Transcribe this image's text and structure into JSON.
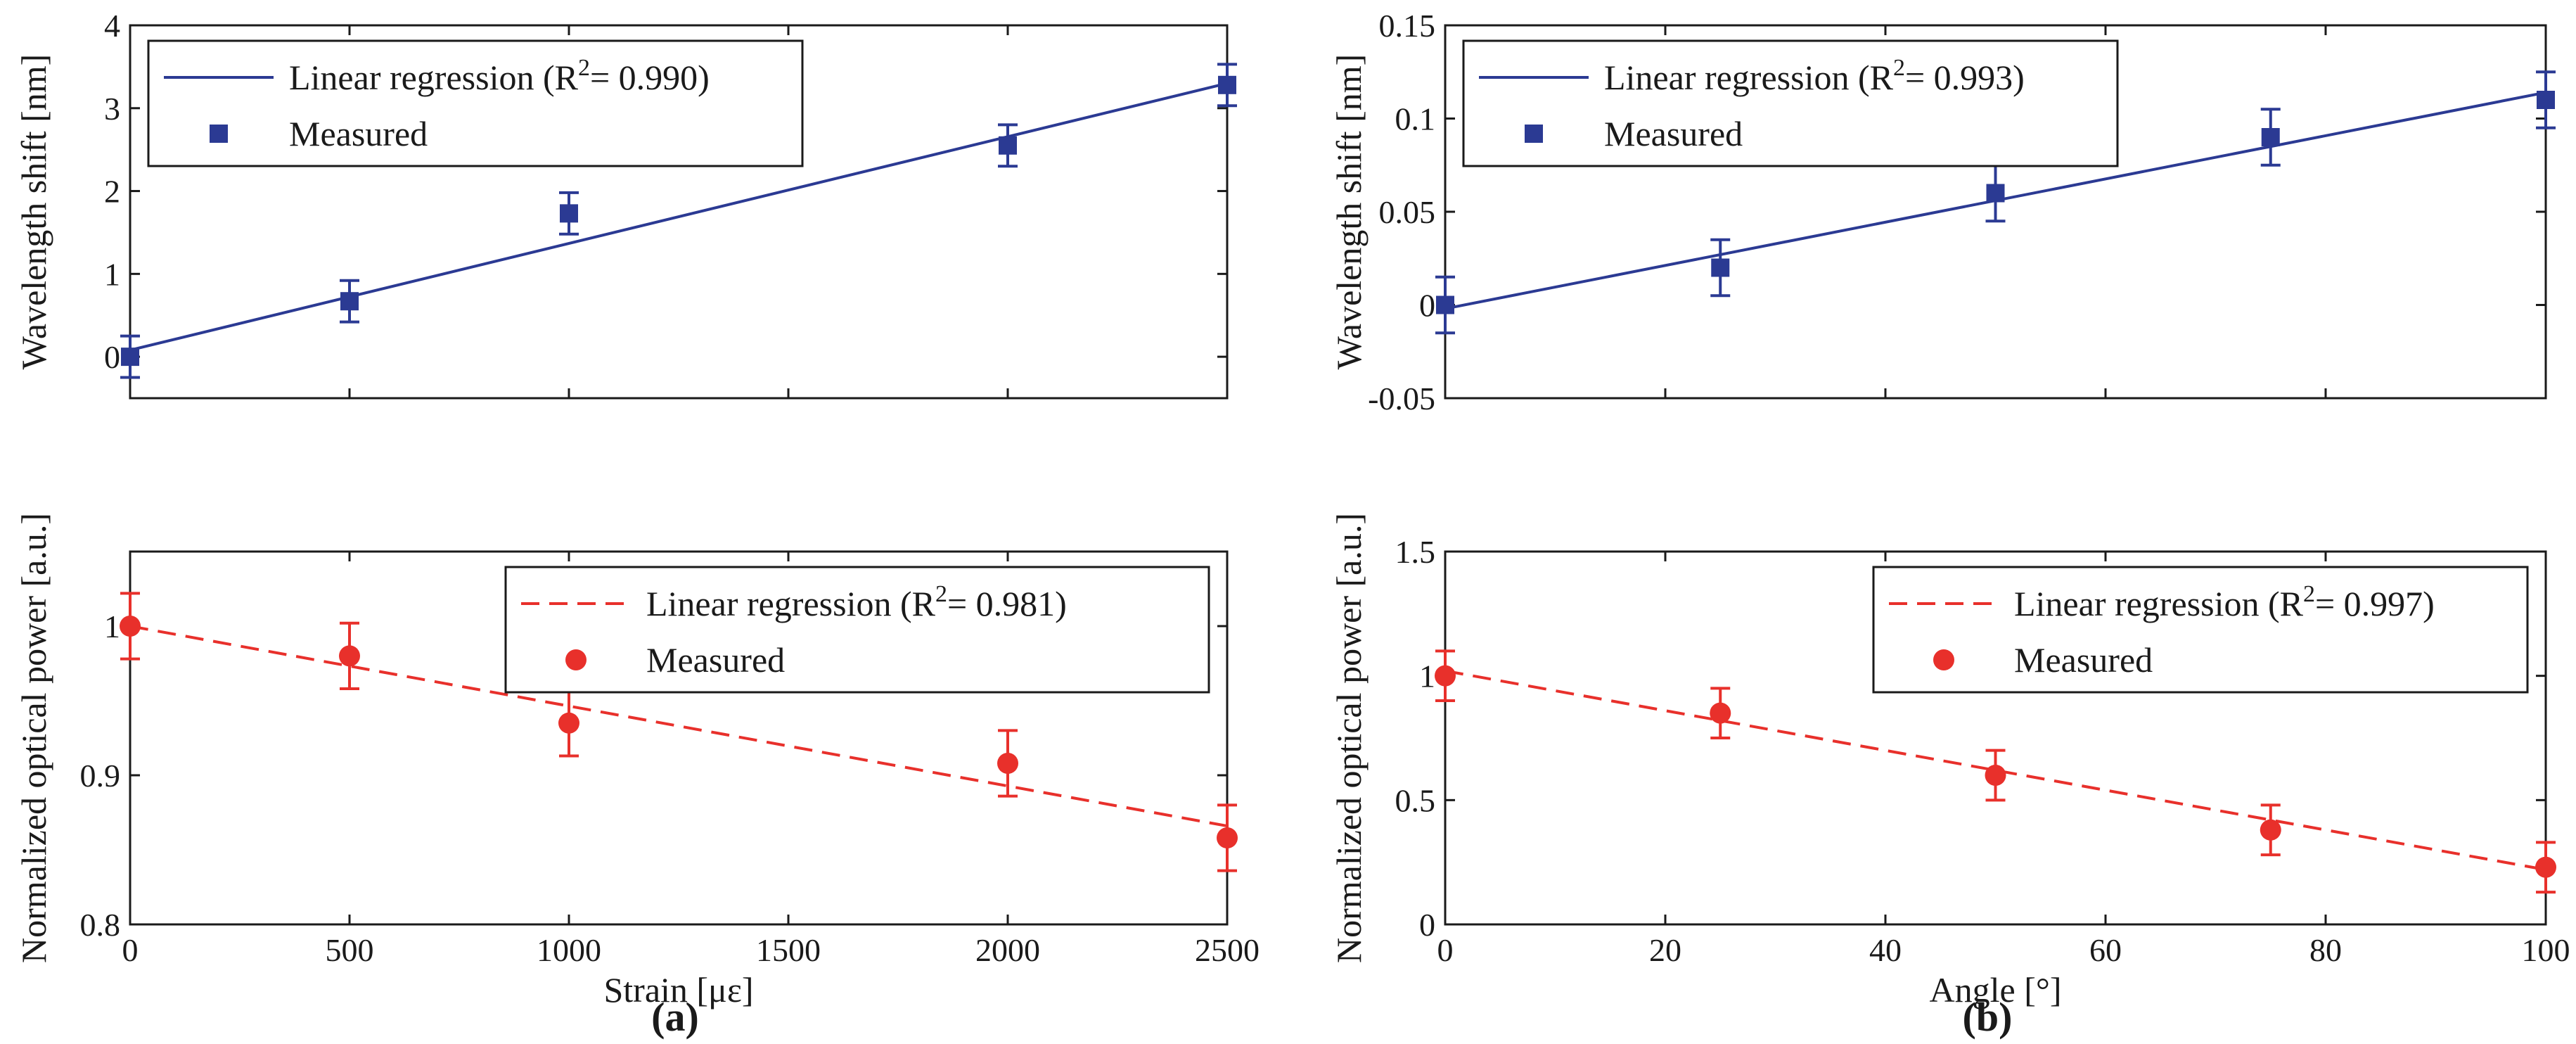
{
  "colors": {
    "blue": "#2b3a93",
    "red": "#e8302b",
    "axis": "#1a1a1a"
  },
  "panel_labels": {
    "a": "(a)",
    "b": "(b)"
  },
  "chart_data": [
    {
      "id": "a_top",
      "type": "scatter",
      "xlabel": "",
      "ylabel": "Wavelength shift [nm]",
      "xlim": [
        0,
        2500
      ],
      "ylim": [
        -0.5,
        4
      ],
      "xticks": [
        0,
        500,
        1000,
        1500,
        2000,
        2500
      ],
      "xtick_labels": [],
      "yticks": [
        0,
        1,
        2,
        3,
        4
      ],
      "ytick_labels": [
        "0",
        "1",
        "2",
        "3",
        "4"
      ],
      "legend_position": "top-left",
      "series": [
        {
          "name": "Linear regression",
          "legend_label": "Linear regression (R",
          "legend_sup": "2",
          "legend_suffix": "= 0.990)",
          "kind": "line",
          "style": "solid",
          "color": "#2b3a93",
          "x": [
            0,
            2500
          ],
          "y": [
            0.08,
            3.3
          ]
        },
        {
          "name": "Measured",
          "legend_label": "Measured",
          "kind": "points",
          "marker": "square",
          "color": "#2b3a93",
          "x": [
            0,
            500,
            1000,
            2000,
            2500
          ],
          "y": [
            0.0,
            0.67,
            1.73,
            2.55,
            3.28
          ],
          "err": [
            0.25,
            0.25,
            0.25,
            0.25,
            0.25
          ]
        }
      ]
    },
    {
      "id": "a_bottom",
      "type": "scatter",
      "xlabel": "Strain [με]",
      "ylabel": "Normalized optical power [a.u.]",
      "xlim": [
        0,
        2500
      ],
      "ylim": [
        0.8,
        1.05
      ],
      "xticks": [
        0,
        500,
        1000,
        1500,
        2000,
        2500
      ],
      "xtick_labels": [
        "0",
        "500",
        "1000",
        "1500",
        "2000",
        "2500"
      ],
      "yticks": [
        0.8,
        0.9,
        1.0
      ],
      "ytick_labels": [
        "0.8",
        "0.9",
        "1"
      ],
      "legend_position": "top-right",
      "series": [
        {
          "name": "Linear regression",
          "legend_label": "Linear regression (R",
          "legend_sup": "2",
          "legend_suffix": "= 0.981)",
          "kind": "line",
          "style": "dashed",
          "color": "#e8302b",
          "x": [
            0,
            2500
          ],
          "y": [
            1.0,
            0.866
          ]
        },
        {
          "name": "Measured",
          "legend_label": "Measured",
          "kind": "points",
          "marker": "circle",
          "color": "#e8302b",
          "x": [
            0,
            500,
            1000,
            2000,
            2500
          ],
          "y": [
            1.0,
            0.98,
            0.935,
            0.908,
            0.858
          ],
          "err": [
            0.022,
            0.022,
            0.022,
            0.022,
            0.022
          ]
        }
      ]
    },
    {
      "id": "b_top",
      "type": "scatter",
      "xlabel": "",
      "ylabel": "Wavelength shift [nm]",
      "xlim": [
        0,
        100
      ],
      "ylim": [
        -0.05,
        0.15
      ],
      "xticks": [
        0,
        20,
        40,
        60,
        80,
        100
      ],
      "xtick_labels": [],
      "yticks": [
        -0.05,
        0,
        0.05,
        0.1,
        0.15
      ],
      "ytick_labels": [
        "-0.05",
        "0",
        "0.05",
        "0.1",
        "0.15"
      ],
      "legend_position": "top-left",
      "series": [
        {
          "name": "Linear regression",
          "legend_label": "Linear regression (R",
          "legend_sup": "2",
          "legend_suffix": "= 0.993)",
          "kind": "line",
          "style": "solid",
          "color": "#2b3a93",
          "x": [
            0,
            100
          ],
          "y": [
            -0.002,
            0.114
          ]
        },
        {
          "name": "Measured",
          "legend_label": "Measured",
          "kind": "points",
          "marker": "square",
          "color": "#2b3a93",
          "x": [
            0,
            25,
            50,
            75,
            100
          ],
          "y": [
            0.0,
            0.02,
            0.06,
            0.09,
            0.11
          ],
          "err": [
            0.015,
            0.015,
            0.015,
            0.015,
            0.015
          ]
        }
      ]
    },
    {
      "id": "b_bottom",
      "type": "scatter",
      "xlabel": "Angle [°]",
      "ylabel": "Normalized optical power [a.u.]",
      "xlim": [
        0,
        100
      ],
      "ylim": [
        0,
        1.5
      ],
      "xticks": [
        0,
        20,
        40,
        60,
        80,
        100
      ],
      "xtick_labels": [
        "0",
        "20",
        "40",
        "60",
        "80",
        "100"
      ],
      "yticks": [
        0,
        0.5,
        1,
        1.5
      ],
      "ytick_labels": [
        "0",
        "0.5",
        "1",
        "1.5"
      ],
      "legend_position": "top-right",
      "series": [
        {
          "name": "Linear regression",
          "legend_label": "Linear regression (R",
          "legend_sup": "2",
          "legend_suffix": "= 0.997)",
          "kind": "line",
          "style": "dashed",
          "color": "#e8302b",
          "x": [
            0,
            100
          ],
          "y": [
            1.02,
            0.22
          ]
        },
        {
          "name": "Measured",
          "legend_label": "Measured",
          "kind": "points",
          "marker": "circle",
          "color": "#e8302b",
          "x": [
            0,
            25,
            50,
            75,
            100
          ],
          "y": [
            1.0,
            0.85,
            0.6,
            0.38,
            0.23
          ],
          "err": [
            0.1,
            0.1,
            0.1,
            0.1,
            0.1
          ]
        }
      ]
    }
  ]
}
